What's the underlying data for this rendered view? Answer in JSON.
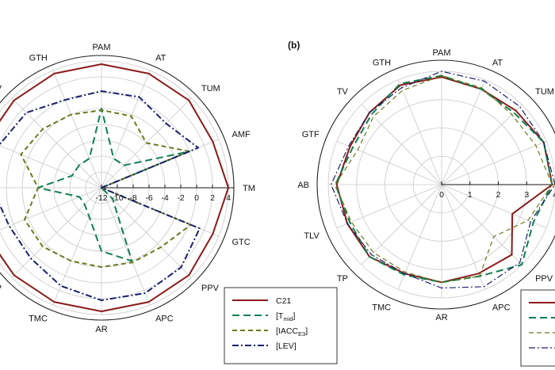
{
  "colors": {
    "C21": "#8b1a1a",
    "T_mid": "#0f8050",
    "IACC_E3": "#6b7a1c",
    "LEV": "#1a1f6b"
  },
  "chart_data": [
    {
      "panel": "",
      "type": "radar",
      "axes": [
        "TM",
        "AMF",
        "TUM",
        "AT",
        "PAM",
        "GTH",
        "TV",
        "GTF",
        "AB",
        "TLV",
        "TP",
        "TMC",
        "AR",
        "APC",
        "PPV",
        "GTC"
      ],
      "rmin": -12,
      "rmax": 4,
      "ring_ticks": [
        -12,
        -10,
        -8,
        -6,
        -4,
        -2,
        0,
        2,
        4
      ],
      "tick_labels": [
        "-12",
        "-10",
        "-8",
        "-6",
        "-4",
        "-2",
        "0",
        "2",
        "4"
      ],
      "legend": [
        "C21",
        "[T",
        "mid",
        "]",
        "[IACC",
        "E3",
        "]",
        "[LEV]"
      ],
      "series": [
        {
          "key": "C21",
          "values": [
            4.0,
            3.2,
            3.6,
            3.6,
            3.6,
            3.6,
            3.6,
            3.7,
            3.7,
            3.7,
            3.6,
            3.6,
            3.6,
            3.6,
            3.6,
            3.2
          ]
        },
        {
          "key": "T_mid",
          "values": [
            -12.0,
            0.0,
            -8.0,
            -8.0,
            -2.0,
            -8.0,
            -8.0,
            -8.0,
            -4.0,
            -9.0,
            -9.0,
            -8.0,
            -4.0,
            -2.0,
            -10.0,
            -12.0
          ]
        },
        {
          "key": "IACC_E3",
          "values": [
            -12.0,
            0.0,
            -4.0,
            -2.2,
            -2.2,
            -2.0,
            -1.5,
            -1.0,
            -4.0,
            -1.5,
            -1.5,
            -2.0,
            -2.0,
            -1.8,
            -1.4,
            0.2
          ]
        },
        {
          "key": "LEV",
          "values": [
            -12.0,
            1.2,
            -0.5,
            0.4,
            0.2,
            0.0,
            1.4,
            2.0,
            1.8,
            0.6,
            0.6,
            1.4,
            2.2,
            2.4,
            2.2,
            1.4
          ]
        }
      ]
    },
    {
      "panel": "(b)",
      "type": "radar",
      "axes": [
        "TM",
        "AMF",
        "TUM",
        "AT",
        "PAM",
        "GTH",
        "TV",
        "GTF",
        "AB",
        "TLV",
        "TP",
        "TMC",
        "AR",
        "APC",
        "PPV",
        "GTC"
      ],
      "rmin": 0,
      "rmax": 4,
      "ring_ticks": [
        0,
        1,
        2,
        3,
        4
      ],
      "tick_labels": [
        "0",
        "1",
        "2",
        "3",
        "4"
      ],
      "series": [
        {
          "key": "C21",
          "values": [
            3.9,
            3.9,
            3.7,
            3.65,
            3.8,
            3.8,
            3.6,
            3.5,
            3.7,
            3.6,
            3.6,
            3.4,
            3.45,
            3.4,
            3.5,
            2.7
          ]
        },
        {
          "key": "T_mid",
          "values": [
            3.9,
            3.9,
            3.6,
            3.65,
            3.85,
            3.85,
            3.5,
            3.4,
            3.75,
            3.5,
            3.6,
            3.45,
            3.45,
            3.5,
            4.0,
            3.5
          ]
        },
        {
          "key": "IACC_E3",
          "values": [
            3.9,
            3.6,
            3.5,
            3.7,
            3.85,
            3.6,
            3.4,
            3.2,
            3.75,
            3.45,
            3.4,
            3.35,
            3.45,
            3.5,
            2.6,
            3.3
          ]
        },
        {
          "key": "LEV",
          "values": [
            4.0,
            3.9,
            3.9,
            3.95,
            4.0,
            3.7,
            3.6,
            3.55,
            3.9,
            3.6,
            3.5,
            3.4,
            3.65,
            3.9,
            3.9,
            3.4
          ]
        }
      ]
    }
  ]
}
